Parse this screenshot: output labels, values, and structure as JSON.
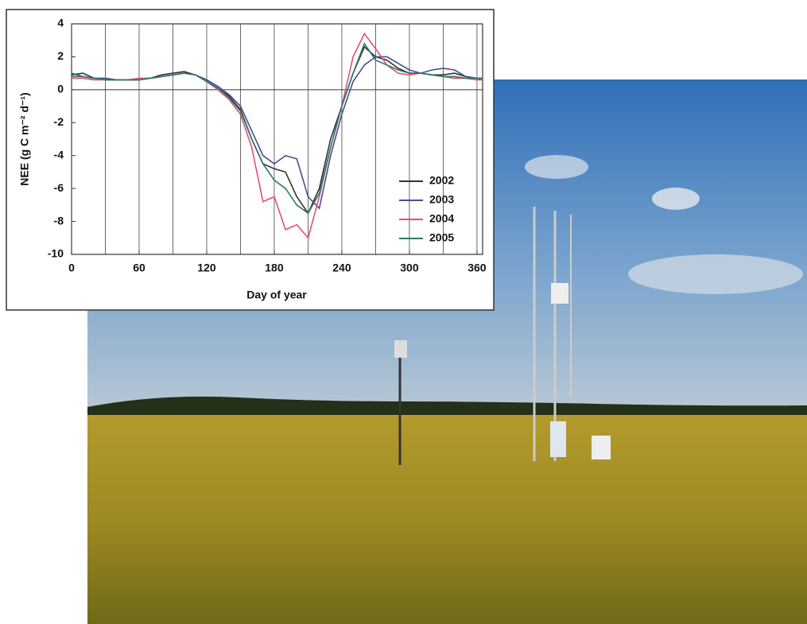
{
  "chart_data": {
    "type": "line",
    "xlabel": "Day of year",
    "ylabel": "NEE (g C m⁻² d⁻¹)",
    "x": [
      0,
      10,
      20,
      30,
      40,
      50,
      60,
      70,
      80,
      90,
      100,
      110,
      120,
      130,
      140,
      150,
      160,
      170,
      180,
      190,
      200,
      210,
      220,
      230,
      240,
      250,
      260,
      270,
      280,
      290,
      300,
      310,
      320,
      330,
      340,
      350,
      360,
      365
    ],
    "series": [
      {
        "name": "2002",
        "color": "#333333",
        "values": [
          0.9,
          1.0,
          0.7,
          0.6,
          0.6,
          0.6,
          0.6,
          0.7,
          0.9,
          1.0,
          1.1,
          0.9,
          0.5,
          0.1,
          -0.4,
          -1.2,
          -3.0,
          -4.5,
          -4.8,
          -5.0,
          -6.5,
          -7.5,
          -6.0,
          -3.0,
          -1.0,
          1.0,
          2.6,
          2.0,
          1.8,
          1.3,
          1.0,
          1.0,
          0.9,
          0.9,
          1.0,
          0.8,
          0.7,
          0.7
        ]
      },
      {
        "name": "2003",
        "color": "#4b4b8f",
        "values": [
          1.0,
          0.8,
          0.7,
          0.7,
          0.6,
          0.6,
          0.6,
          0.7,
          0.8,
          0.9,
          1.0,
          0.9,
          0.6,
          0.2,
          -0.3,
          -1.0,
          -2.5,
          -4.0,
          -4.5,
          -4.0,
          -4.2,
          -6.5,
          -7.2,
          -4.0,
          -1.5,
          0.5,
          1.5,
          2.0,
          2.0,
          1.6,
          1.2,
          1.0,
          1.2,
          1.3,
          1.2,
          0.8,
          0.7,
          0.6
        ]
      },
      {
        "name": "2004",
        "color": "#e0507a",
        "values": [
          0.7,
          0.7,
          0.6,
          0.6,
          0.6,
          0.6,
          0.7,
          0.7,
          0.8,
          0.9,
          1.0,
          0.9,
          0.5,
          0.0,
          -0.6,
          -1.5,
          -3.5,
          -6.8,
          -6.5,
          -8.5,
          -8.2,
          -9.0,
          -6.5,
          -3.5,
          -1.0,
          2.0,
          3.4,
          2.5,
          1.5,
          1.0,
          0.9,
          1.0,
          0.9,
          0.8,
          0.7,
          0.7,
          0.6,
          0.6
        ]
      },
      {
        "name": "2005",
        "color": "#2a7a6a",
        "values": [
          0.8,
          0.8,
          0.7,
          0.6,
          0.6,
          0.6,
          0.6,
          0.7,
          0.8,
          0.9,
          1.0,
          0.9,
          0.5,
          0.1,
          -0.5,
          -1.3,
          -3.0,
          -4.5,
          -5.5,
          -6.0,
          -7.0,
          -7.5,
          -6.3,
          -3.5,
          -1.0,
          1.0,
          2.8,
          1.8,
          1.5,
          1.2,
          1.0,
          1.0,
          0.9,
          0.8,
          0.8,
          0.7,
          0.7,
          0.7
        ]
      }
    ],
    "xlim": [
      0,
      365
    ],
    "xticks": [
      0,
      60,
      120,
      180,
      240,
      300,
      360
    ],
    "xminorticks": [
      30,
      90,
      150,
      210,
      270,
      330
    ],
    "ylim": [
      -10,
      4
    ],
    "yticks": [
      -10,
      -8,
      -6,
      -4,
      -2,
      0,
      2,
      4
    ],
    "grid": true,
    "zero_line": true,
    "legend": "lower right"
  }
}
